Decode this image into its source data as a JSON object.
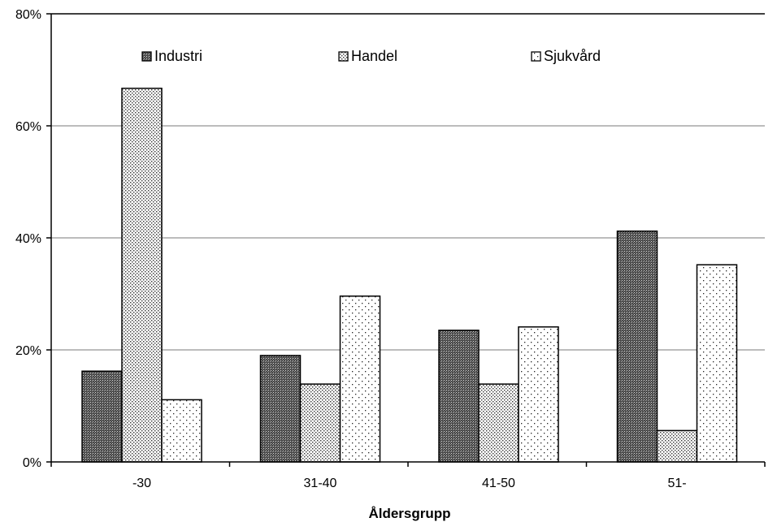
{
  "chart_data": {
    "type": "bar",
    "categories": [
      "-30",
      "31-40",
      "41-50",
      "51-"
    ],
    "series": [
      {
        "name": "Industri",
        "values": [
          16.2,
          19.0,
          23.5,
          41.2
        ],
        "pattern": "dense-crosshatch",
        "color": "#000000"
      },
      {
        "name": "Handel",
        "values": [
          66.7,
          13.9,
          13.9,
          5.6
        ],
        "pattern": "medium-dots",
        "color": "#000000"
      },
      {
        "name": "Sjukvård",
        "values": [
          11.1,
          29.6,
          24.1,
          35.2
        ],
        "pattern": "sparse-dots",
        "color": "#000000"
      }
    ],
    "title": "",
    "xlabel": "Åldersgrupp",
    "ylabel": "",
    "ylim": [
      0,
      80
    ],
    "yticks": [
      0,
      20,
      40,
      60,
      80
    ],
    "ytick_labels": [
      "0%",
      "20%",
      "40%",
      "60%",
      "80%"
    ],
    "grid": true,
    "legend_position": "top"
  }
}
